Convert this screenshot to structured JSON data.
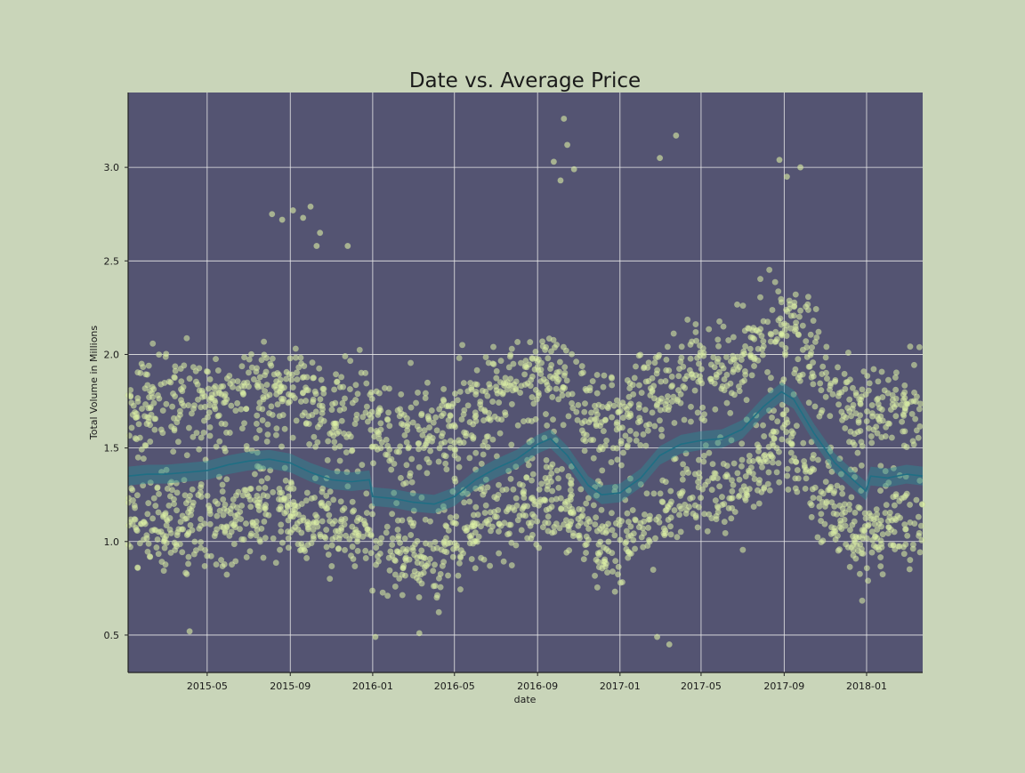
{
  "chart_data": {
    "type": "scatter",
    "title": "Date vs. Average Price",
    "xlabel": "date",
    "ylabel": "Total Volume in Millions",
    "x_range": [
      "2015-01-04",
      "2018-03-25"
    ],
    "ylim": [
      0.3,
      3.4
    ],
    "x_tick_labels": [
      "2015-05",
      "2015-09",
      "2016-01",
      "2016-05",
      "2016-09",
      "2017-01",
      "2017-05",
      "2017-09",
      "2018-01"
    ],
    "x_tick_dates": [
      "2015-05-01",
      "2015-09-01",
      "2016-01-01",
      "2016-05-01",
      "2016-09-01",
      "2017-01-01",
      "2017-05-01",
      "2017-09-01",
      "2018-01-01"
    ],
    "y_ticks": [
      0.5,
      1.0,
      1.5,
      2.0,
      2.5,
      3.0
    ],
    "y_tick_labels": [
      "0.5",
      "1.0",
      "1.5",
      "2.0",
      "2.5",
      "3.0"
    ],
    "grid": true,
    "series": [
      {
        "kind": "trend_line_with_confidence_band",
        "x": [
          "2015-01-04",
          "2015-02-01",
          "2015-03-01",
          "2015-04-01",
          "2015-05-01",
          "2015-06-01",
          "2015-07-01",
          "2015-08-01",
          "2015-09-01",
          "2015-10-01",
          "2015-11-01",
          "2015-12-01",
          "2015-12-27",
          "2016-01-01",
          "2016-02-01",
          "2016-03-01",
          "2016-04-01",
          "2016-05-01",
          "2016-06-01",
          "2016-07-01",
          "2016-08-01",
          "2016-09-01",
          "2016-09-20",
          "2016-10-15",
          "2016-11-15",
          "2016-12-05",
          "2017-01-01",
          "2017-02-01",
          "2017-03-01",
          "2017-04-01",
          "2017-05-01",
          "2017-06-01",
          "2017-07-01",
          "2017-08-01",
          "2017-08-28",
          "2017-09-15",
          "2017-10-15",
          "2017-11-15",
          "2017-12-15",
          "2017-12-31",
          "2018-01-07",
          "2018-02-01",
          "2018-03-01",
          "2018-03-25"
        ],
        "y": [
          1.35,
          1.36,
          1.36,
          1.37,
          1.38,
          1.41,
          1.43,
          1.44,
          1.42,
          1.37,
          1.33,
          1.32,
          1.33,
          1.24,
          1.23,
          1.21,
          1.2,
          1.24,
          1.33,
          1.39,
          1.44,
          1.52,
          1.55,
          1.46,
          1.3,
          1.25,
          1.26,
          1.34,
          1.46,
          1.52,
          1.54,
          1.55,
          1.6,
          1.72,
          1.8,
          1.76,
          1.58,
          1.42,
          1.32,
          1.27,
          1.35,
          1.34,
          1.36,
          1.35
        ],
        "band_halfwidth": 0.05,
        "color": "#2a8a94"
      },
      {
        "kind": "scatter_cloud",
        "description_points": "individual observations; dense band between about 0.9 and 1.9 with outliers",
        "color": "#dff2a6",
        "outliers": [
          {
            "x": "2015-08-05",
            "y": 2.75
          },
          {
            "x": "2015-08-20",
            "y": 2.72
          },
          {
            "x": "2015-09-05",
            "y": 2.77
          },
          {
            "x": "2015-09-20",
            "y": 2.73
          },
          {
            "x": "2015-10-01",
            "y": 2.79
          },
          {
            "x": "2015-10-15",
            "y": 2.65
          },
          {
            "x": "2015-10-10",
            "y": 2.58
          },
          {
            "x": "2015-11-25",
            "y": 2.58
          },
          {
            "x": "2016-10-10",
            "y": 3.26
          },
          {
            "x": "2016-10-15",
            "y": 3.12
          },
          {
            "x": "2016-09-25",
            "y": 3.03
          },
          {
            "x": "2016-10-25",
            "y": 2.99
          },
          {
            "x": "2016-10-05",
            "y": 2.93
          },
          {
            "x": "2017-03-25",
            "y": 3.17
          },
          {
            "x": "2017-03-01",
            "y": 3.05
          },
          {
            "x": "2017-08-25",
            "y": 3.04
          },
          {
            "x": "2017-09-25",
            "y": 3.0
          },
          {
            "x": "2017-09-05",
            "y": 2.95
          },
          {
            "x": "2016-03-10",
            "y": 0.51
          },
          {
            "x": "2015-04-05",
            "y": 0.52
          },
          {
            "x": "2017-03-15",
            "y": 0.45
          },
          {
            "x": "2017-02-25",
            "y": 0.49
          },
          {
            "x": "2016-01-05",
            "y": 0.49
          }
        ]
      }
    ]
  }
}
